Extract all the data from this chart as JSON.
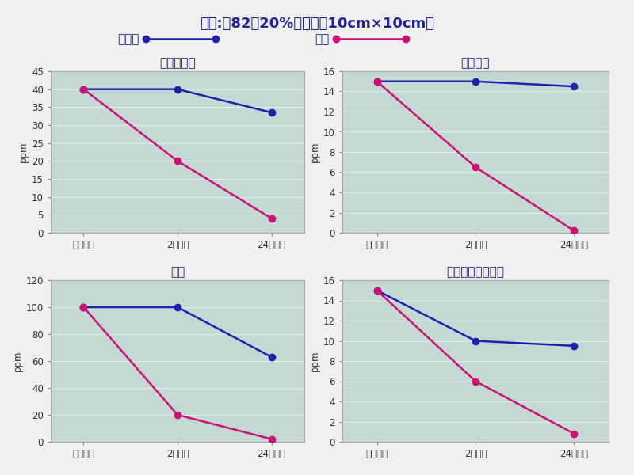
{
  "title": "試料:炇82濃20%の敷物（10cm×10cm）",
  "legend_blank": "空試験",
  "legend_sample": "試料",
  "x_labels": [
    "初期濃度",
    "2時間後",
    "24時間後"
  ],
  "subplots": [
    {
      "title": "アンモニア",
      "ylabel": "ppm",
      "ylim": [
        0,
        45
      ],
      "yticks": [
        0,
        5,
        10,
        15,
        20,
        25,
        30,
        35,
        40,
        45
      ],
      "blank": [
        40,
        40,
        33.5
      ],
      "sample": [
        40,
        20,
        4
      ]
    },
    {
      "title": "硫化水素",
      "ylabel": "ppm",
      "ylim": [
        0,
        16
      ],
      "yticks": [
        0,
        2,
        4,
        6,
        8,
        10,
        12,
        14,
        16
      ],
      "blank": [
        15,
        15,
        14.5
      ],
      "sample": [
        15,
        6.5,
        0.2
      ]
    },
    {
      "title": "酢酸",
      "ylabel": "ppm",
      "ylim": [
        0,
        120
      ],
      "yticks": [
        0,
        20,
        40,
        60,
        80,
        100,
        120
      ],
      "blank": [
        100,
        100,
        63
      ],
      "sample": [
        100,
        20,
        2
      ]
    },
    {
      "title": "ホルムアルデヒド",
      "ylabel": "ppm",
      "ylim": [
        0,
        16
      ],
      "yticks": [
        0,
        2,
        4,
        6,
        8,
        10,
        12,
        14,
        16
      ],
      "blank": [
        15,
        10,
        9.5
      ],
      "sample": [
        15,
        6,
        0.8
      ]
    }
  ],
  "blank_color": "#2020aa",
  "sample_color": "#cc1177",
  "bg_color": "#c5d9d4",
  "fig_bg": "#f0f0ee",
  "marker": "o",
  "linewidth": 1.8,
  "markersize": 6,
  "title_color": "#222299",
  "tick_color": "#333333",
  "title_fontsize": 13,
  "subtitle_fontsize": 11,
  "legend_fontsize": 11,
  "axis_title_fontsize": 11,
  "tick_fontsize": 8.5
}
